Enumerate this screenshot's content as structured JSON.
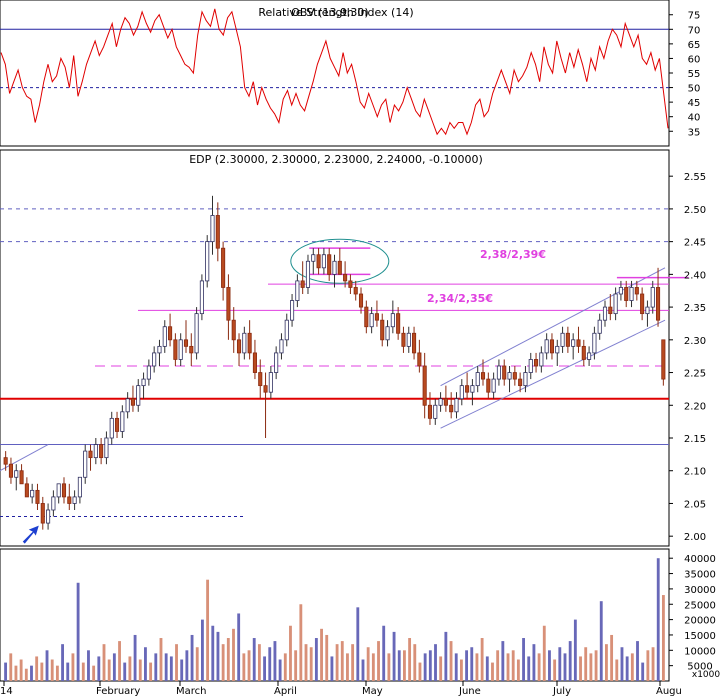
{
  "chart_data": [
    {
      "type": "line",
      "title": "OBV (13,9,30)",
      "overprint_title": "Relative Strength Index (14)",
      "indicator": "rsi",
      "yticks": [
        35,
        40,
        45,
        50,
        55,
        60,
        65,
        70,
        75
      ],
      "ylim": [
        32,
        78
      ],
      "hlines": [
        {
          "y": 70,
          "style": "solid"
        },
        {
          "y": 50,
          "style": "dashed"
        }
      ],
      "series": [
        {
          "color": "#e00000",
          "values": [
            62,
            58,
            48,
            52,
            56,
            50,
            47,
            46,
            38,
            44,
            52,
            58,
            52,
            54,
            60,
            57,
            50,
            61,
            47,
            52,
            58,
            62,
            66,
            61,
            64,
            68,
            72,
            64,
            70,
            74,
            72,
            68,
            71,
            76,
            72,
            69,
            73,
            75,
            71,
            67,
            70,
            64,
            61,
            58,
            57,
            55,
            68,
            76,
            73,
            71,
            77,
            70,
            68,
            74,
            76,
            70,
            64,
            50,
            47,
            52,
            44,
            50,
            46,
            43,
            41,
            38,
            46,
            49,
            44,
            48,
            44,
            42,
            47,
            52,
            58,
            62,
            66,
            60,
            57,
            54,
            62,
            55,
            58,
            52,
            45,
            43,
            48,
            44,
            40,
            44,
            46,
            38,
            44,
            42,
            45,
            50,
            46,
            42,
            40,
            46,
            42,
            38,
            34,
            36,
            34,
            38,
            36,
            38,
            38,
            34,
            38,
            44,
            46,
            40,
            42,
            48,
            52,
            56,
            52,
            48,
            56,
            52,
            54,
            57,
            62,
            58,
            52,
            64,
            58,
            55,
            66,
            60,
            55,
            62,
            57,
            63,
            58,
            52,
            60,
            56,
            64,
            60,
            66,
            70,
            68,
            64,
            72,
            68,
            64,
            68,
            60,
            58,
            62,
            56,
            60,
            48,
            36
          ]
        }
      ],
      "xlabels": [
        "14",
        "February",
        "March",
        "April",
        "May",
        "June",
        "July",
        "Augu"
      ]
    },
    {
      "type": "candlestick",
      "title": "EDP (2.30000, 2.30000, 2.23000, 2.24000, -0.10000)",
      "yticks": [
        "2.00",
        "2.05",
        "2.10",
        "2.15",
        "2.20",
        "2.25",
        "2.30",
        "2.35",
        "2.40",
        "2.45",
        "2.50",
        "2.55"
      ],
      "ylim": [
        1.985,
        2.59
      ],
      "annotations": [
        {
          "text": "2,38/2,39€",
          "color": "#e040e0",
          "x_date": "2012-05-26",
          "y": 2.395
        },
        {
          "text": "2,34/2,35€",
          "color": "#e040e0",
          "x_date": "2012-05-26",
          "y": 2.325
        }
      ],
      "lines": [
        {
          "y": 2.21,
          "color": "#e00000",
          "style": "solid"
        },
        {
          "y": 2.14,
          "color": "#6060c0",
          "style": "solid"
        },
        {
          "y": 2.45,
          "color": "#6060c0",
          "style": "dashed"
        },
        {
          "y": 2.5,
          "color": "#6060c0",
          "style": "dashed"
        },
        {
          "y": 2.03,
          "color": "#2020a0",
          "style": "dotted"
        },
        {
          "y": 2.26,
          "color": "#e040e0",
          "style": "dashed"
        },
        {
          "y": 2.345,
          "color": "#e040e0",
          "style": "solid"
        },
        {
          "y": 2.385,
          "color": "#e040e0",
          "style": "solid"
        }
      ],
      "ohlc": [
        [
          2.12,
          2.13,
          2.1,
          2.11
        ],
        [
          2.11,
          2.12,
          2.08,
          2.09
        ],
        [
          2.09,
          2.11,
          2.07,
          2.1
        ],
        [
          2.1,
          2.11,
          2.08,
          2.08
        ],
        [
          2.08,
          2.09,
          2.06,
          2.06
        ],
        [
          2.06,
          2.08,
          2.05,
          2.07
        ],
        [
          2.07,
          2.08,
          2.04,
          2.05
        ],
        [
          2.05,
          2.06,
          2.01,
          2.02
        ],
        [
          2.02,
          2.05,
          2.01,
          2.04
        ],
        [
          2.04,
          2.07,
          2.03,
          2.06
        ],
        [
          2.06,
          2.08,
          2.05,
          2.08
        ],
        [
          2.08,
          2.09,
          2.05,
          2.06
        ],
        [
          2.06,
          2.08,
          2.04,
          2.05
        ],
        [
          2.05,
          2.07,
          2.04,
          2.06
        ],
        [
          2.06,
          2.09,
          2.05,
          2.09
        ],
        [
          2.09,
          2.14,
          2.08,
          2.13
        ],
        [
          2.13,
          2.14,
          2.1,
          2.12
        ],
        [
          2.12,
          2.15,
          2.11,
          2.14
        ],
        [
          2.14,
          2.15,
          2.11,
          2.12
        ],
        [
          2.12,
          2.16,
          2.11,
          2.15
        ],
        [
          2.15,
          2.19,
          2.14,
          2.18
        ],
        [
          2.18,
          2.19,
          2.15,
          2.16
        ],
        [
          2.16,
          2.2,
          2.15,
          2.19
        ],
        [
          2.19,
          2.22,
          2.18,
          2.21
        ],
        [
          2.21,
          2.23,
          2.19,
          2.2
        ],
        [
          2.2,
          2.24,
          2.19,
          2.23
        ],
        [
          2.23,
          2.25,
          2.21,
          2.24
        ],
        [
          2.24,
          2.27,
          2.23,
          2.26
        ],
        [
          2.26,
          2.29,
          2.25,
          2.28
        ],
        [
          2.28,
          2.3,
          2.26,
          2.29
        ],
        [
          2.29,
          2.33,
          2.28,
          2.32
        ],
        [
          2.32,
          2.34,
          2.29,
          2.3
        ],
        [
          2.3,
          2.31,
          2.26,
          2.27
        ],
        [
          2.27,
          2.31,
          2.26,
          2.3
        ],
        [
          2.3,
          2.33,
          2.28,
          2.29
        ],
        [
          2.29,
          2.31,
          2.26,
          2.28
        ],
        [
          2.28,
          2.35,
          2.27,
          2.34
        ],
        [
          2.34,
          2.4,
          2.33,
          2.39
        ],
        [
          2.39,
          2.46,
          2.38,
          2.45
        ],
        [
          2.45,
          2.52,
          2.43,
          2.49
        ],
        [
          2.49,
          2.51,
          2.42,
          2.44
        ],
        [
          2.44,
          2.45,
          2.36,
          2.38
        ],
        [
          2.38,
          2.4,
          2.3,
          2.33
        ],
        [
          2.33,
          2.35,
          2.28,
          2.3
        ],
        [
          2.3,
          2.31,
          2.26,
          2.28
        ],
        [
          2.28,
          2.32,
          2.27,
          2.31
        ],
        [
          2.31,
          2.33,
          2.27,
          2.28
        ],
        [
          2.28,
          2.3,
          2.24,
          2.25
        ],
        [
          2.25,
          2.27,
          2.21,
          2.23
        ],
        [
          2.23,
          2.25,
          2.15,
          2.22
        ],
        [
          2.22,
          2.26,
          2.21,
          2.25
        ],
        [
          2.25,
          2.29,
          2.24,
          2.28
        ],
        [
          2.28,
          2.31,
          2.27,
          2.3
        ],
        [
          2.3,
          2.34,
          2.29,
          2.33
        ],
        [
          2.33,
          2.37,
          2.32,
          2.36
        ],
        [
          2.36,
          2.4,
          2.35,
          2.39
        ],
        [
          2.39,
          2.42,
          2.37,
          2.38
        ],
        [
          2.38,
          2.43,
          2.37,
          2.42
        ],
        [
          2.42,
          2.44,
          2.4,
          2.43
        ],
        [
          2.43,
          2.44,
          2.4,
          2.41
        ],
        [
          2.41,
          2.44,
          2.4,
          2.43
        ],
        [
          2.43,
          2.44,
          2.39,
          2.4
        ],
        [
          2.4,
          2.43,
          2.38,
          2.42
        ],
        [
          2.42,
          2.44,
          2.4,
          2.4
        ],
        [
          2.4,
          2.42,
          2.38,
          2.39
        ],
        [
          2.39,
          2.4,
          2.37,
          2.38
        ],
        [
          2.38,
          2.39,
          2.36,
          2.37
        ],
        [
          2.37,
          2.38,
          2.34,
          2.35
        ],
        [
          2.35,
          2.36,
          2.31,
          2.32
        ],
        [
          2.32,
          2.35,
          2.31,
          2.34
        ],
        [
          2.34,
          2.36,
          2.32,
          2.33
        ],
        [
          2.33,
          2.34,
          2.29,
          2.3
        ],
        [
          2.3,
          2.33,
          2.29,
          2.32
        ],
        [
          2.32,
          2.36,
          2.31,
          2.34
        ],
        [
          2.34,
          2.35,
          2.3,
          2.31
        ],
        [
          2.31,
          2.32,
          2.28,
          2.29
        ],
        [
          2.29,
          2.32,
          2.28,
          2.31
        ],
        [
          2.31,
          2.32,
          2.27,
          2.28
        ],
        [
          2.28,
          2.3,
          2.25,
          2.26
        ],
        [
          2.26,
          2.28,
          2.18,
          2.2
        ],
        [
          2.2,
          2.22,
          2.17,
          2.18
        ],
        [
          2.18,
          2.21,
          2.17,
          2.2
        ],
        [
          2.2,
          2.22,
          2.19,
          2.21
        ],
        [
          2.21,
          2.23,
          2.19,
          2.2
        ],
        [
          2.2,
          2.22,
          2.18,
          2.19
        ],
        [
          2.19,
          2.22,
          2.18,
          2.21
        ],
        [
          2.21,
          2.24,
          2.2,
          2.23
        ],
        [
          2.23,
          2.25,
          2.21,
          2.22
        ],
        [
          2.22,
          2.24,
          2.2,
          2.23
        ],
        [
          2.23,
          2.26,
          2.22,
          2.25
        ],
        [
          2.25,
          2.27,
          2.23,
          2.24
        ],
        [
          2.24,
          2.25,
          2.21,
          2.22
        ],
        [
          2.22,
          2.25,
          2.21,
          2.24
        ],
        [
          2.24,
          2.27,
          2.23,
          2.26
        ],
        [
          2.26,
          2.27,
          2.23,
          2.24
        ],
        [
          2.24,
          2.26,
          2.22,
          2.25
        ],
        [
          2.25,
          2.26,
          2.23,
          2.24
        ],
        [
          2.24,
          2.25,
          2.22,
          2.23
        ],
        [
          2.23,
          2.26,
          2.22,
          2.25
        ],
        [
          2.25,
          2.28,
          2.24,
          2.27
        ],
        [
          2.27,
          2.28,
          2.25,
          2.26
        ],
        [
          2.26,
          2.29,
          2.25,
          2.28
        ],
        [
          2.28,
          2.31,
          2.27,
          2.3
        ],
        [
          2.3,
          2.31,
          2.27,
          2.28
        ],
        [
          2.28,
          2.3,
          2.26,
          2.29
        ],
        [
          2.29,
          2.32,
          2.28,
          2.31
        ],
        [
          2.31,
          2.32,
          2.28,
          2.29
        ],
        [
          2.29,
          2.31,
          2.27,
          2.3
        ],
        [
          2.3,
          2.32,
          2.28,
          2.29
        ],
        [
          2.29,
          2.3,
          2.26,
          2.27
        ],
        [
          2.27,
          2.29,
          2.26,
          2.28
        ],
        [
          2.28,
          2.32,
          2.27,
          2.31
        ],
        [
          2.31,
          2.34,
          2.3,
          2.33
        ],
        [
          2.33,
          2.36,
          2.32,
          2.35
        ],
        [
          2.35,
          2.37,
          2.33,
          2.34
        ],
        [
          2.34,
          2.38,
          2.33,
          2.37
        ],
        [
          2.37,
          2.39,
          2.36,
          2.38
        ],
        [
          2.38,
          2.39,
          2.35,
          2.36
        ],
        [
          2.36,
          2.39,
          2.35,
          2.38
        ],
        [
          2.38,
          2.39,
          2.36,
          2.37
        ],
        [
          2.37,
          2.38,
          2.33,
          2.34
        ],
        [
          2.34,
          2.36,
          2.32,
          2.35
        ],
        [
          2.35,
          2.39,
          2.34,
          2.38
        ],
        [
          2.38,
          2.41,
          2.32,
          2.33
        ],
        [
          2.3,
          2.3,
          2.23,
          2.24
        ]
      ]
    },
    {
      "type": "bar",
      "title": "Volume",
      "unit_label": "x1000",
      "yticks": [
        5000,
        10000,
        15000,
        20000,
        25000,
        30000,
        35000,
        40000
      ],
      "ylim": [
        0,
        43000
      ],
      "up_color": "#6868b8",
      "down_color": "#d89078",
      "values": [
        6000,
        9000,
        5000,
        7000,
        4000,
        5000,
        8000,
        6000,
        10000,
        7000,
        5000,
        12000,
        6000,
        9000,
        32000,
        6000,
        10000,
        5000,
        8000,
        12000,
        7000,
        9000,
        13000,
        6000,
        8000,
        15000,
        7000,
        11000,
        6000,
        9000,
        14000,
        9000,
        8000,
        12000,
        7000,
        10000,
        15000,
        11000,
        20000,
        33000,
        18000,
        16000,
        12000,
        14000,
        17000,
        22000,
        9000,
        10000,
        14000,
        12000,
        8000,
        11000,
        13000,
        7000,
        9000,
        18000,
        10000,
        25000,
        12000,
        11000,
        14000,
        17000,
        15000,
        8000,
        12000,
        13000,
        9000,
        12000,
        24000,
        7000,
        11000,
        9000,
        13000,
        18000,
        9000,
        16000,
        10000,
        10000,
        14000,
        12000,
        6000,
        9000,
        10000,
        12000,
        8000,
        16000,
        13000,
        9000,
        7000,
        10000,
        11000,
        9000,
        14000,
        8000,
        6000,
        10000,
        13000,
        9000,
        10000,
        7000,
        14000,
        8000,
        12000,
        9000,
        18000,
        10000,
        7000,
        11000,
        9000,
        13000,
        20000,
        8000,
        11000,
        9000,
        10000,
        26000,
        12000,
        15000,
        7000,
        11000,
        8000,
        9000,
        13000,
        6000,
        10000,
        11000,
        40000,
        28000
      ],
      "directions": "udddduddudduududududdudududududuuduuududuudddudduduuuudddddduddudddduuddduduudddduuudududuuddudduddduuudduduuuudddduddduuduuddud"
    }
  ]
}
